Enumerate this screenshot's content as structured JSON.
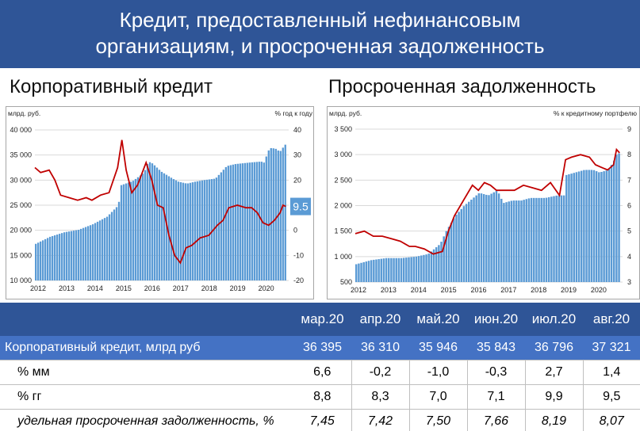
{
  "page": {
    "title_line1": "Кредит, предоставленный нефинансовым",
    "title_line2": "организациям, и просроченная задолженность"
  },
  "chart_data": [
    {
      "type": "bar+line",
      "title": "Корпоративный кредит",
      "left_unit": "млрд. руб.",
      "right_unit": "% год к году",
      "left_ylim": [
        10000,
        40000
      ],
      "left_ticks": [
        "10 000",
        "15 000",
        "20 000",
        "25 000",
        "30 000",
        "35 000",
        "40 000"
      ],
      "right_ylim": [
        -20,
        40
      ],
      "right_ticks": [
        "-20",
        "-10",
        "0",
        "10",
        "20",
        "30",
        "40"
      ],
      "x_ticks": [
        "2012",
        "2013",
        "2014",
        "2015",
        "2016",
        "2017",
        "2018",
        "2019",
        "2020"
      ],
      "x_range": [
        2012.0,
        2020.9
      ],
      "bar_color": "#5b9bd5",
      "line_color": "#c00000",
      "callout": "9.5",
      "bar_anchors": [
        [
          2012.0,
          17300
        ],
        [
          2012.5,
          18700
        ],
        [
          2013.0,
          19600
        ],
        [
          2013.5,
          20100
        ],
        [
          2014.0,
          21200
        ],
        [
          2014.5,
          22700
        ],
        [
          2014.9,
          25000
        ],
        [
          2015.0,
          29000
        ],
        [
          2015.4,
          29800
        ],
        [
          2015.8,
          31500
        ],
        [
          2015.95,
          33700
        ],
        [
          2016.1,
          33300
        ],
        [
          2016.4,
          31700
        ],
        [
          2016.8,
          30300
        ],
        [
          2017.0,
          29700
        ],
        [
          2017.3,
          29300
        ],
        [
          2017.6,
          29700
        ],
        [
          2017.9,
          30000
        ],
        [
          2018.3,
          30300
        ],
        [
          2018.7,
          32800
        ],
        [
          2019.0,
          33200
        ],
        [
          2019.5,
          33500
        ],
        [
          2019.9,
          33700
        ],
        [
          2020.0,
          33500
        ],
        [
          2020.2,
          36400
        ],
        [
          2020.4,
          36300
        ],
        [
          2020.5,
          35900
        ],
        [
          2020.6,
          35800
        ],
        [
          2020.7,
          36800
        ],
        [
          2020.8,
          37321
        ]
      ],
      "line_points": [
        [
          2012.0,
          25
        ],
        [
          2012.2,
          23
        ],
        [
          2012.5,
          24
        ],
        [
          2012.7,
          20
        ],
        [
          2012.9,
          14
        ],
        [
          2013.2,
          13
        ],
        [
          2013.5,
          12
        ],
        [
          2013.8,
          13
        ],
        [
          2014.0,
          12
        ],
        [
          2014.3,
          14
        ],
        [
          2014.6,
          15
        ],
        [
          2014.9,
          25
        ],
        [
          2015.05,
          36
        ],
        [
          2015.2,
          24
        ],
        [
          2015.4,
          15
        ],
        [
          2015.6,
          18
        ],
        [
          2015.9,
          27
        ],
        [
          2016.1,
          20
        ],
        [
          2016.3,
          10
        ],
        [
          2016.5,
          9
        ],
        [
          2016.7,
          -2
        ],
        [
          2016.9,
          -10
        ],
        [
          2017.1,
          -13
        ],
        [
          2017.3,
          -7
        ],
        [
          2017.5,
          -6
        ],
        [
          2017.8,
          -3
        ],
        [
          2018.1,
          -2
        ],
        [
          2018.4,
          2
        ],
        [
          2018.6,
          4
        ],
        [
          2018.8,
          9
        ],
        [
          2019.1,
          10
        ],
        [
          2019.4,
          9
        ],
        [
          2019.6,
          9
        ],
        [
          2019.8,
          7
        ],
        [
          2020.0,
          3
        ],
        [
          2020.2,
          2
        ],
        [
          2020.4,
          4
        ],
        [
          2020.6,
          7
        ],
        [
          2020.7,
          10
        ],
        [
          2020.8,
          9.5
        ]
      ]
    },
    {
      "type": "bar+line",
      "title": "Просроченная задолженность",
      "left_unit": "млрд. руб.",
      "right_unit": "% к кредитному портфелю",
      "left_ylim": [
        500,
        3500
      ],
      "left_ticks": [
        "500",
        "1 000",
        "1 500",
        "2 000",
        "2 500",
        "3 000",
        "3 500"
      ],
      "right_ylim": [
        3,
        9
      ],
      "right_ticks": [
        "3",
        "4",
        "5",
        "6",
        "7",
        "8",
        "9"
      ],
      "x_ticks": [
        "2012",
        "2013",
        "2014",
        "2015",
        "2016",
        "2017",
        "2018",
        "2019",
        "2020"
      ],
      "x_range": [
        2012.0,
        2020.9
      ],
      "bar_color": "#5b9bd5",
      "line_color": "#c00000",
      "bar_anchors": [
        [
          2012.0,
          850
        ],
        [
          2012.5,
          930
        ],
        [
          2013.0,
          970
        ],
        [
          2013.5,
          970
        ],
        [
          2014.0,
          1000
        ],
        [
          2014.4,
          1050
        ],
        [
          2014.8,
          1250
        ],
        [
          2015.0,
          1500
        ],
        [
          2015.3,
          1800
        ],
        [
          2015.6,
          2000
        ],
        [
          2015.9,
          2150
        ],
        [
          2016.1,
          2250
        ],
        [
          2016.4,
          2200
        ],
        [
          2016.7,
          2300
        ],
        [
          2016.9,
          2050
        ],
        [
          2017.2,
          2100
        ],
        [
          2017.5,
          2100
        ],
        [
          2017.8,
          2150
        ],
        [
          2018.3,
          2150
        ],
        [
          2018.7,
          2200
        ],
        [
          2018.95,
          2200
        ],
        [
          2019.0,
          2600
        ],
        [
          2019.3,
          2650
        ],
        [
          2019.6,
          2700
        ],
        [
          2019.9,
          2700
        ],
        [
          2020.1,
          2650
        ],
        [
          2020.4,
          2700
        ],
        [
          2020.6,
          2900
        ],
        [
          2020.7,
          3050
        ],
        [
          2020.8,
          3000
        ]
      ],
      "line_points": [
        [
          2012.0,
          4.9
        ],
        [
          2012.3,
          5.0
        ],
        [
          2012.6,
          4.8
        ],
        [
          2012.9,
          4.8
        ],
        [
          2013.2,
          4.7
        ],
        [
          2013.5,
          4.6
        ],
        [
          2013.8,
          4.4
        ],
        [
          2014.0,
          4.4
        ],
        [
          2014.3,
          4.3
        ],
        [
          2014.6,
          4.1
        ],
        [
          2014.9,
          4.2
        ],
        [
          2015.1,
          5.0
        ],
        [
          2015.3,
          5.6
        ],
        [
          2015.6,
          6.2
        ],
        [
          2015.9,
          6.8
        ],
        [
          2016.1,
          6.6
        ],
        [
          2016.3,
          6.9
        ],
        [
          2016.5,
          6.8
        ],
        [
          2016.7,
          6.6
        ],
        [
          2017.0,
          6.6
        ],
        [
          2017.3,
          6.6
        ],
        [
          2017.6,
          6.8
        ],
        [
          2017.9,
          6.7
        ],
        [
          2018.2,
          6.6
        ],
        [
          2018.5,
          6.9
        ],
        [
          2018.8,
          6.4
        ],
        [
          2019.0,
          7.8
        ],
        [
          2019.2,
          7.9
        ],
        [
          2019.5,
          8.0
        ],
        [
          2019.8,
          7.9
        ],
        [
          2020.0,
          7.6
        ],
        [
          2020.2,
          7.5
        ],
        [
          2020.4,
          7.4
        ],
        [
          2020.6,
          7.6
        ],
        [
          2020.7,
          8.2
        ],
        [
          2020.8,
          8.07
        ]
      ]
    }
  ],
  "table": {
    "months": [
      "мар.20",
      "апр.20",
      "май.20",
      "июн.20",
      "июл.20",
      "авг.20"
    ],
    "rows": [
      {
        "label": "Корпоративный кредит, млрд руб",
        "values": [
          "36 395",
          "36 310",
          "35 946",
          "35 843",
          "36 796",
          "37 321"
        ],
        "style": "main"
      },
      {
        "label": "% мм",
        "values": [
          "6,6",
          "-0,2",
          "-1,0",
          "-0,3",
          "2,7",
          "1,4"
        ],
        "style": "plain"
      },
      {
        "label": "% гг",
        "values": [
          "8,8",
          "8,3",
          "7,0",
          "7,1",
          "9,9",
          "9,5"
        ],
        "style": "plain"
      },
      {
        "label": "удельная просроченная задолженность, %",
        "values": [
          "7,45",
          "7,42",
          "7,50",
          "7,66",
          "8,19",
          "8,07"
        ],
        "style": "italic"
      }
    ],
    "negative_color": "#e00000"
  }
}
